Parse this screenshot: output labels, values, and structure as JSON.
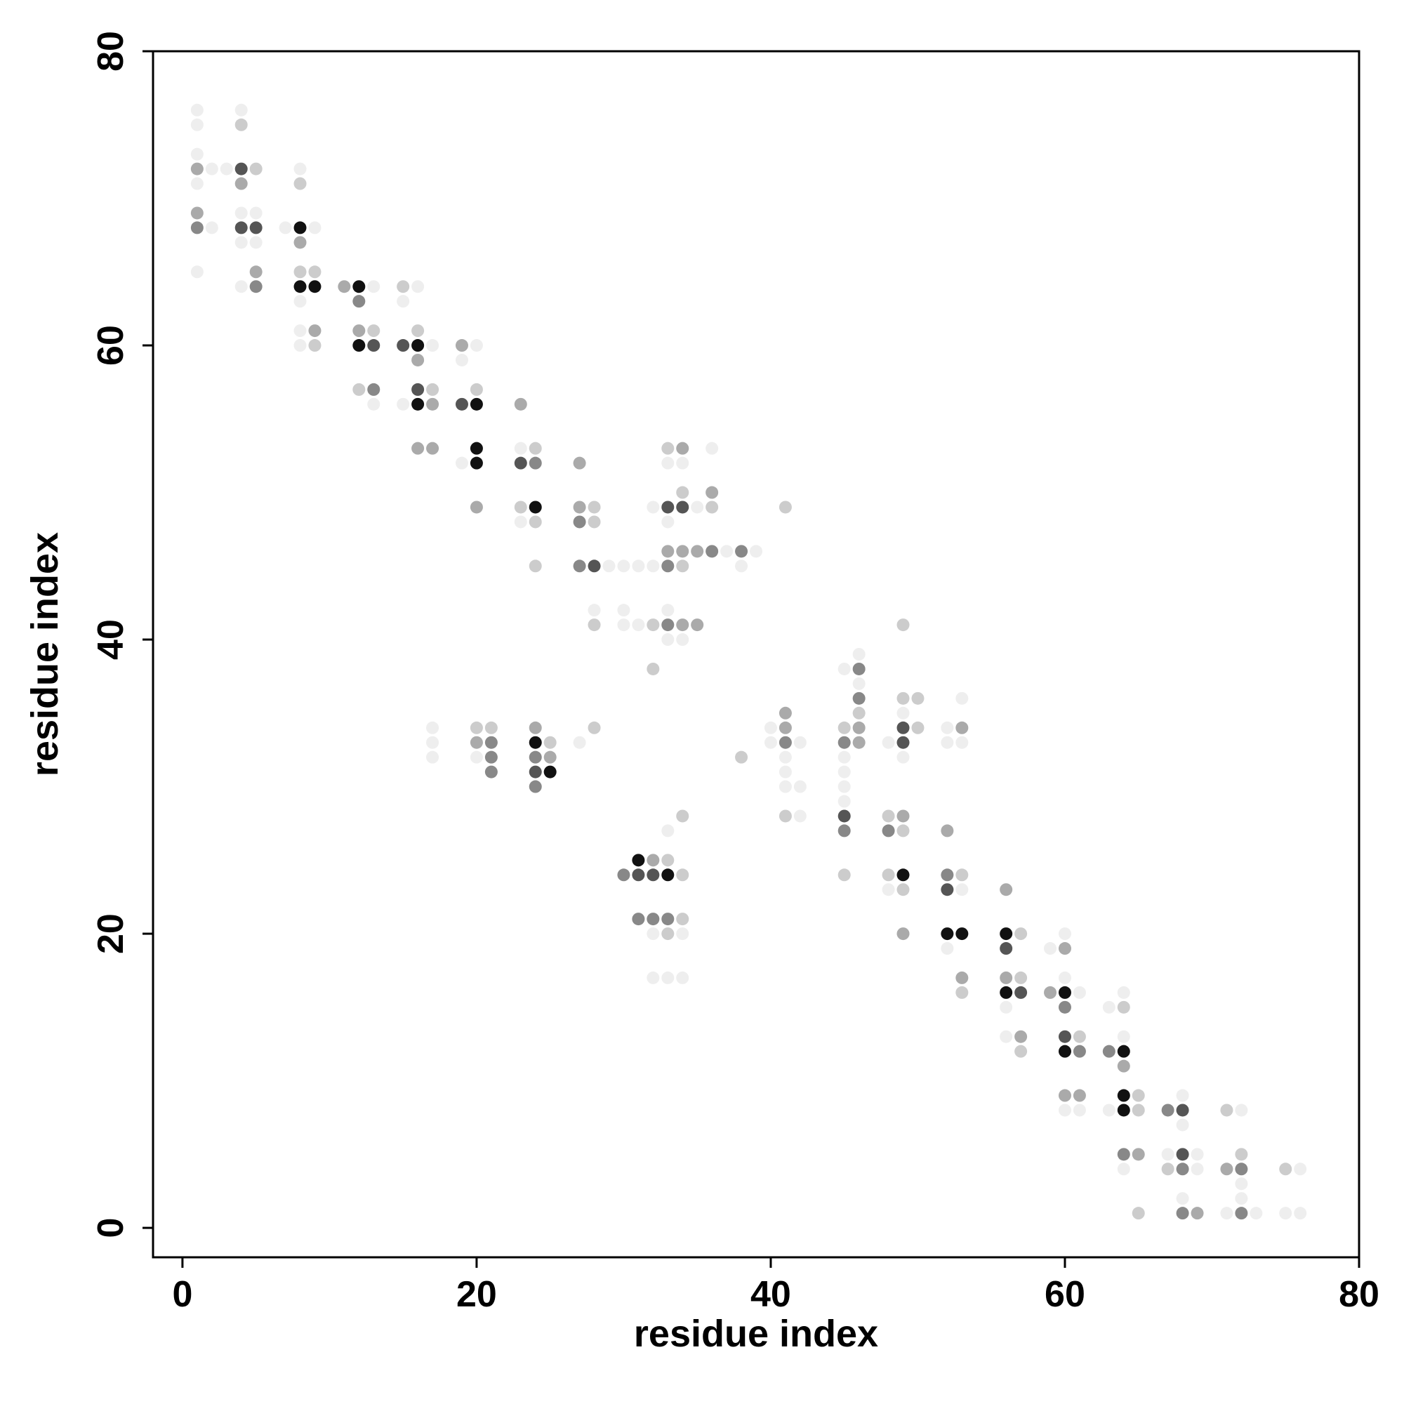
{
  "chart_data": {
    "type": "scatter",
    "x_label": "residue index",
    "y_label": "residue index",
    "xlim": [
      -2,
      80
    ],
    "ylim": [
      -2,
      80
    ],
    "xticks": [
      0,
      20,
      40,
      60,
      80
    ],
    "yticks": [
      0,
      20,
      40,
      60,
      80
    ],
    "x": [
      1,
      1,
      1,
      1,
      1,
      1,
      1,
      1,
      2,
      2,
      3,
      4,
      4,
      4,
      4,
      4,
      4,
      4,
      4,
      5,
      5,
      5,
      5,
      5,
      5,
      7,
      8,
      8,
      8,
      8,
      8,
      8,
      8,
      8,
      8,
      9,
      9,
      9,
      9,
      9,
      11,
      12,
      12,
      12,
      12,
      12,
      13,
      13,
      13,
      13,
      13,
      15,
      15,
      15,
      15,
      16,
      16,
      16,
      16,
      16,
      16,
      16,
      17,
      17,
      17,
      17,
      17,
      17,
      17,
      19,
      19,
      19,
      19,
      20,
      20,
      20,
      20,
      20,
      20,
      20,
      20,
      20,
      21,
      21,
      21,
      21,
      23,
      23,
      23,
      23,
      23,
      24,
      24,
      24,
      24,
      24,
      24,
      24,
      24,
      24,
      24,
      25,
      25,
      25,
      27,
      27,
      27,
      27,
      27,
      28,
      28,
      28,
      28,
      28,
      28,
      29,
      30,
      30,
      30,
      30,
      31,
      31,
      31,
      31,
      31,
      32,
      32,
      32,
      32,
      32,
      32,
      32,
      32,
      32,
      33,
      33,
      33,
      33,
      33,
      33,
      33,
      33,
      33,
      33,
      33,
      33,
      33,
      33,
      33,
      34,
      34,
      34,
      34,
      34,
      34,
      34,
      34,
      34,
      34,
      34,
      34,
      34,
      35,
      35,
      35,
      36,
      36,
      36,
      36,
      37,
      38,
      38,
      38,
      39,
      40,
      40,
      41,
      41,
      41,
      41,
      41,
      41,
      41,
      41,
      42,
      42,
      42,
      45,
      45,
      45,
      45,
      45,
      45,
      45,
      45,
      45,
      45,
      46,
      46,
      46,
      46,
      46,
      46,
      46,
      48,
      48,
      48,
      48,
      48,
      49,
      49,
      49,
      49,
      49,
      49,
      49,
      49,
      49,
      49,
      49,
      50,
      50,
      52,
      52,
      52,
      52,
      52,
      52,
      52,
      53,
      53,
      53,
      53,
      53,
      53,
      53,
      53,
      56,
      56,
      56,
      56,
      56,
      56,
      56,
      57,
      57,
      57,
      57,
      57,
      59,
      59,
      60,
      60,
      60,
      60,
      60,
      60,
      60,
      60,
      60,
      61,
      61,
      61,
      61,
      61,
      63,
      63,
      63,
      64,
      64,
      64,
      64,
      64,
      64,
      64,
      64,
      64,
      65,
      65,
      65,
      65,
      67,
      67,
      67,
      68,
      68,
      68,
      68,
      68,
      68,
      68,
      69,
      69,
      69,
      71,
      71,
      71,
      72,
      72,
      72,
      72,
      72,
      72,
      73,
      75,
      75,
      76,
      76
    ],
    "values": [
      76,
      75,
      73,
      72,
      71,
      69,
      68,
      65,
      72,
      68,
      72,
      76,
      75,
      72,
      71,
      69,
      68,
      67,
      64,
      72,
      69,
      68,
      67,
      65,
      64,
      68,
      72,
      71,
      68,
      67,
      65,
      64,
      63,
      61,
      60,
      68,
      65,
      64,
      61,
      60,
      64,
      64,
      63,
      61,
      60,
      57,
      64,
      61,
      60,
      57,
      56,
      64,
      63,
      60,
      56,
      64,
      61,
      60,
      59,
      57,
      56,
      53,
      60,
      57,
      56,
      53,
      34,
      33,
      32,
      60,
      59,
      56,
      52,
      60,
      57,
      56,
      53,
      52,
      49,
      34,
      33,
      32,
      34,
      33,
      32,
      31,
      56,
      53,
      52,
      49,
      48,
      53,
      52,
      49,
      48,
      45,
      34,
      33,
      32,
      31,
      30,
      33,
      32,
      31,
      52,
      49,
      48,
      45,
      33,
      49,
      48,
      45,
      42,
      41,
      34,
      45,
      45,
      42,
      41,
      24,
      45,
      41,
      25,
      24,
      21,
      49,
      45,
      41,
      38,
      25,
      24,
      21,
      20,
      17,
      53,
      52,
      49,
      48,
      46,
      45,
      42,
      41,
      40,
      27,
      25,
      24,
      21,
      20,
      17,
      53,
      52,
      50,
      49,
      46,
      45,
      41,
      40,
      28,
      24,
      21,
      20,
      17,
      49,
      46,
      41,
      53,
      50,
      49,
      46,
      46,
      46,
      45,
      32,
      46,
      34,
      33,
      49,
      35,
      34,
      33,
      32,
      31,
      30,
      28,
      33,
      30,
      28,
      38,
      34,
      33,
      32,
      31,
      30,
      29,
      28,
      27,
      24,
      39,
      38,
      37,
      36,
      35,
      34,
      33,
      33,
      28,
      27,
      24,
      23,
      41,
      36,
      35,
      34,
      33,
      32,
      28,
      27,
      24,
      23,
      20,
      36,
      34,
      34,
      33,
      27,
      24,
      23,
      20,
      19,
      36,
      34,
      33,
      24,
      23,
      20,
      17,
      16,
      23,
      20,
      19,
      17,
      16,
      15,
      13,
      20,
      17,
      16,
      13,
      12,
      19,
      16,
      20,
      19,
      17,
      16,
      15,
      13,
      12,
      9,
      8,
      16,
      13,
      12,
      9,
      8,
      15,
      12,
      8,
      16,
      15,
      13,
      12,
      11,
      9,
      8,
      5,
      4,
      9,
      8,
      5,
      1,
      8,
      5,
      4,
      9,
      8,
      7,
      5,
      4,
      2,
      1,
      5,
      4,
      1,
      8,
      4,
      1,
      8,
      5,
      4,
      3,
      2,
      1,
      1,
      4,
      1,
      4,
      1
    ],
    "colors": [
      "#eee",
      "#eee",
      "#eee",
      "#aaa",
      "#eee",
      "#aaa",
      "#888",
      "#eee",
      "#eee",
      "#eee",
      "#eee",
      "#eee",
      "#ccc",
      "#555",
      "#aaa",
      "#eee",
      "#555",
      "#eee",
      "#eee",
      "#ccc",
      "#eee",
      "#555",
      "#eee",
      "#aaa",
      "#888",
      "#eee",
      "#eee",
      "#ccc",
      "#111",
      "#aaa",
      "#ccc",
      "#111",
      "#eee",
      "#eee",
      "#eee",
      "#eee",
      "#ccc",
      "#111",
      "#aaa",
      "#ccc",
      "#aaa",
      "#111",
      "#888",
      "#aaa",
      "#111",
      "#ccc",
      "#eee",
      "#ccc",
      "#555",
      "#888",
      "#eee",
      "#ccc",
      "#eee",
      "#555",
      "#eee",
      "#eee",
      "#ccc",
      "#111",
      "#aaa",
      "#555",
      "#111",
      "#aaa",
      "#eee",
      "#ccc",
      "#aaa",
      "#aaa",
      "#eee",
      "#eee",
      "#eee",
      "#aaa",
      "#eee",
      "#555",
      "#eee",
      "#eee",
      "#ccc",
      "#111",
      "#111",
      "#111",
      "#aaa",
      "#ccc",
      "#aaa",
      "#eee",
      "#ccc",
      "#888",
      "#888",
      "#888",
      "#aaa",
      "#eee",
      "#555",
      "#ccc",
      "#eee",
      "#ccc",
      "#888",
      "#111",
      "#ccc",
      "#ccc",
      "#aaa",
      "#111",
      "#888",
      "#555",
      "#888",
      "#ccc",
      "#aaa",
      "#111",
      "#aaa",
      "#aaa",
      "#888",
      "#888",
      "#eee",
      "#ccc",
      "#ccc",
      "#555",
      "#eee",
      "#ccc",
      "#ccc",
      "#eee",
      "#eee",
      "#eee",
      "#eee",
      "#888",
      "#eee",
      "#eee",
      "#111",
      "#555",
      "#888",
      "#eee",
      "#eee",
      "#ccc",
      "#ccc",
      "#aaa",
      "#555",
      "#888",
      "#eee",
      "#eee",
      "#ccc",
      "#eee",
      "#555",
      "#eee",
      "#aaa",
      "#888",
      "#eee",
      "#888",
      "#eee",
      "#eee",
      "#ccc",
      "#111",
      "#888",
      "#ccc",
      "#eee",
      "#aaa",
      "#eee",
      "#ccc",
      "#555",
      "#aaa",
      "#ccc",
      "#aaa",
      "#eee",
      "#ccc",
      "#ccc",
      "#ccc",
      "#eee",
      "#eee",
      "#eee",
      "#aaa",
      "#aaa",
      "#eee",
      "#aaa",
      "#ccc",
      "#888",
      "#eee",
      "#888",
      "#eee",
      "#ccc",
      "#eee",
      "#eee",
      "#eee",
      "#ccc",
      "#aaa",
      "#aaa",
      "#888",
      "#eee",
      "#eee",
      "#eee",
      "#ccc",
      "#eee",
      "#eee",
      "#eee",
      "#eee",
      "#ccc",
      "#888",
      "#eee",
      "#eee",
      "#eee",
      "#eee",
      "#555",
      "#888",
      "#ccc",
      "#eee",
      "#888",
      "#eee",
      "#888",
      "#ccc",
      "#aaa",
      "#aaa",
      "#eee",
      "#ccc",
      "#888",
      "#ccc",
      "#eee",
      "#ccc",
      "#ccc",
      "#eee",
      "#555",
      "#555",
      "#eee",
      "#aaa",
      "#ccc",
      "#111",
      "#ccc",
      "#aaa",
      "#ccc",
      "#ccc",
      "#eee",
      "#eee",
      "#aaa",
      "#888",
      "#555",
      "#111",
      "#eee",
      "#eee",
      "#aaa",
      "#eee",
      "#ccc",
      "#eee",
      "#111",
      "#aaa",
      "#ccc",
      "#aaa",
      "#111",
      "#555",
      "#aaa",
      "#111",
      "#eee",
      "#eee",
      "#ccc",
      "#ccc",
      "#555",
      "#aaa",
      "#ccc",
      "#eee",
      "#aaa",
      "#eee",
      "#aaa",
      "#eee",
      "#111",
      "#888",
      "#555",
      "#111",
      "#aaa",
      "#eee",
      "#eee",
      "#ccc",
      "#888",
      "#aaa",
      "#eee",
      "#eee",
      "#888",
      "#eee",
      "#eee",
      "#ccc",
      "#eee",
      "#111",
      "#aaa",
      "#111",
      "#111",
      "#888",
      "#eee",
      "#ccc",
      "#ccc",
      "#aaa",
      "#ccc",
      "#888",
      "#eee",
      "#ccc",
      "#eee",
      "#555",
      "#eee",
      "#555",
      "#888",
      "#eee",
      "#888",
      "#eee",
      "#eee",
      "#aaa",
      "#ccc",
      "#aaa",
      "#eee",
      "#eee",
      "#ccc",
      "#888",
      "#eee",
      "#eee",
      "#888",
      "#eee",
      "#ccc",
      "#eee",
      "#eee",
      "#eee"
    ]
  }
}
